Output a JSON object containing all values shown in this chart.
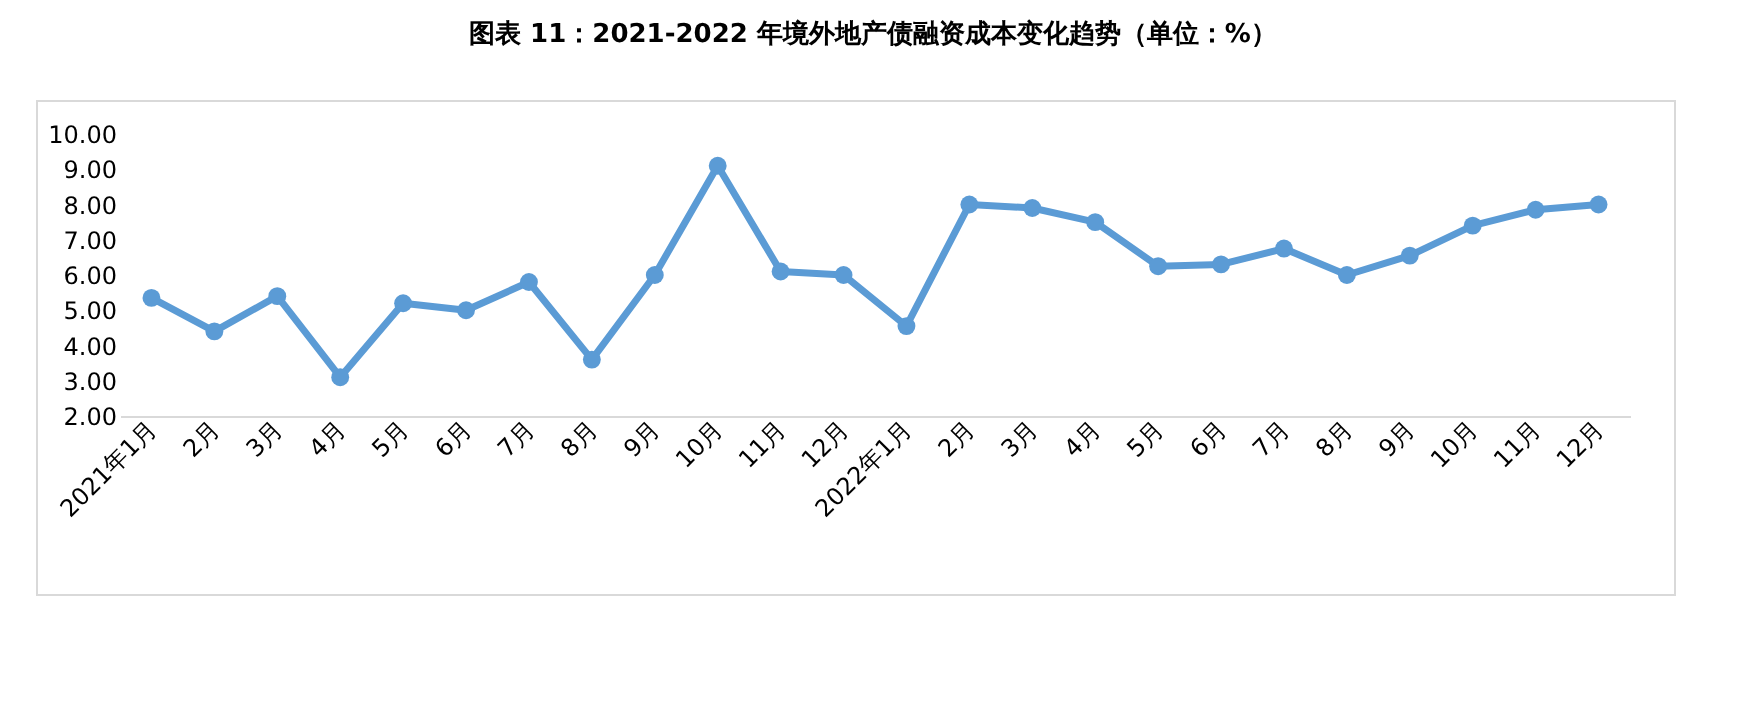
{
  "chart_data": {
    "type": "line",
    "title": "图表 11：2021-2022 年境外地产债融资成本变化趋势（单位：%）",
    "categories": [
      "2021年1月",
      "2月",
      "3月",
      "4月",
      "5月",
      "6月",
      "7月",
      "8月",
      "9月",
      "10月",
      "11月",
      "12月",
      "2022年1月",
      "2月",
      "3月",
      "4月",
      "5月",
      "6月",
      "7月",
      "8月",
      "9月",
      "10月",
      "11月",
      "12月"
    ],
    "series": [
      {
        "color": "#5b9bd5",
        "values": [
          5.35,
          4.4,
          5.4,
          3.1,
          5.2,
          5.0,
          5.8,
          3.6,
          6.0,
          9.1,
          6.1,
          6.0,
          4.55,
          8.0,
          7.9,
          7.5,
          6.25,
          6.3,
          6.75,
          6.0,
          6.55,
          7.4,
          7.85,
          8.0
        ]
      }
    ],
    "ylim": [
      2,
      10
    ],
    "yticks": [
      {
        "value": 2,
        "label": "2.00"
      },
      {
        "value": 3,
        "label": "3.00"
      },
      {
        "value": 4,
        "label": "4.00"
      },
      {
        "value": 5,
        "label": "5.00"
      },
      {
        "value": 6,
        "label": "6.00"
      },
      {
        "value": 7,
        "label": "7.00"
      },
      {
        "value": 8,
        "label": "8.00"
      },
      {
        "value": 9,
        "label": "9.00"
      },
      {
        "value": 10,
        "label": "10.00"
      }
    ],
    "grid": false,
    "marker": "circle",
    "line_style": "solid"
  }
}
